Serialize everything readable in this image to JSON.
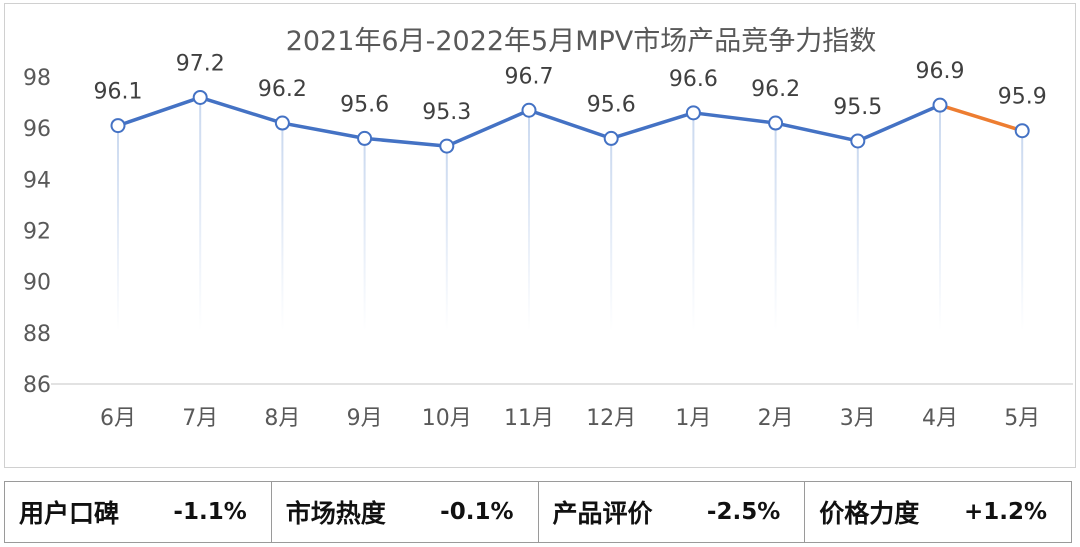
{
  "chart_data": {
    "type": "line",
    "title": "2021年6月-2022年5月MPV市场产品竞争力指数",
    "categories": [
      "6月",
      "7月",
      "8月",
      "9月",
      "10月",
      "11月",
      "12月",
      "1月",
      "2月",
      "3月",
      "4月",
      "5月"
    ],
    "values": [
      96.1,
      97.2,
      96.2,
      95.6,
      95.3,
      96.7,
      95.6,
      96.6,
      96.2,
      95.5,
      96.9,
      95.9
    ],
    "data_labels": [
      "96.1",
      "97.2",
      "96.2",
      "95.6",
      "95.3",
      "96.7",
      "95.6",
      "96.6",
      "96.2",
      "95.5",
      "96.9",
      "95.9"
    ],
    "y_ticks": [
      86,
      88,
      90,
      92,
      94,
      96,
      98
    ],
    "y_tick_labels": [
      "86",
      "88",
      "90",
      "92",
      "94",
      "96",
      "98"
    ],
    "ylim": [
      86,
      98
    ],
    "xlabel": "",
    "ylabel": "",
    "colors": {
      "main": "#4472c4",
      "last_segment": "#ed7d31",
      "dropline": "#c9d8ef",
      "axis": "#d9d9d9"
    }
  },
  "metrics": [
    {
      "label": "用户口碑",
      "value": "-1.1%"
    },
    {
      "label": "市场热度",
      "value": "-0.1%"
    },
    {
      "label": "产品评价",
      "value": "-2.5%"
    },
    {
      "label": "价格力度",
      "value": "+1.2%"
    }
  ]
}
